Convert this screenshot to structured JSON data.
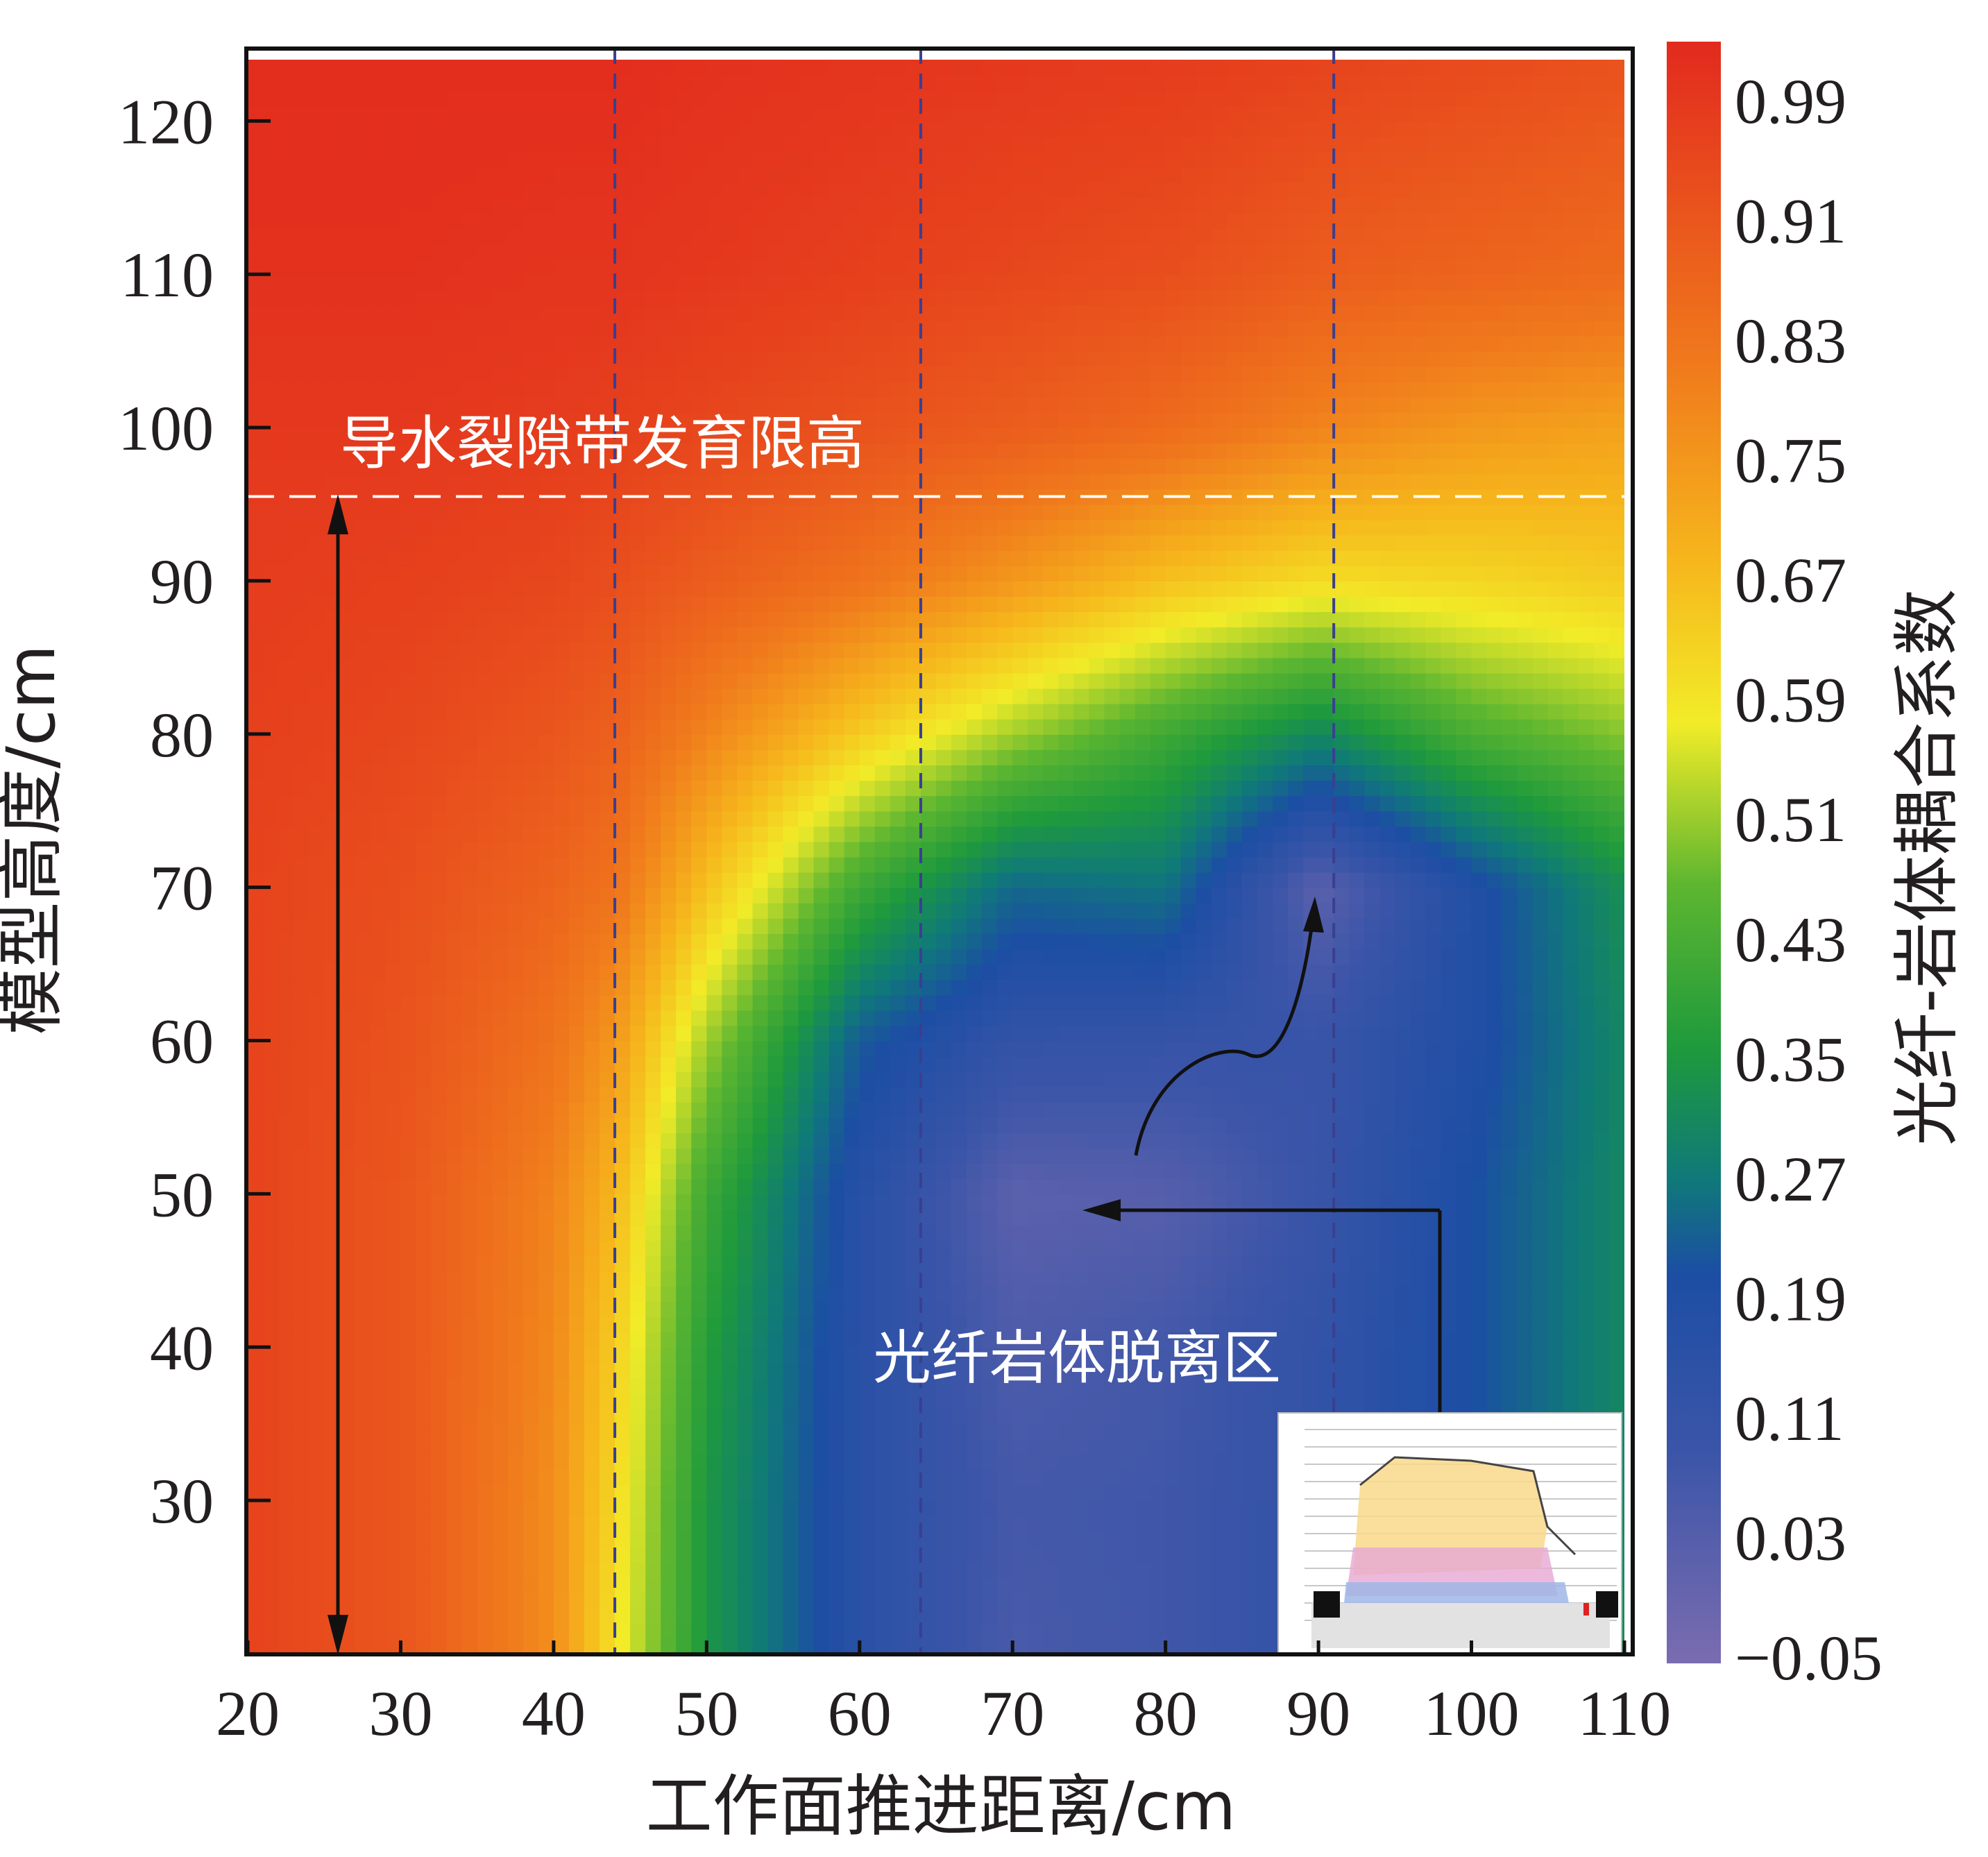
{
  "chart_data": {
    "type": "heatmap",
    "title": "",
    "xlabel": "工作面推进距离/cm",
    "ylabel": "模型高度/cm",
    "xlim": [
      20,
      110
    ],
    "ylim": [
      20,
      124
    ],
    "x_ticks": [
      "20",
      "30",
      "40",
      "50",
      "60",
      "70",
      "80",
      "90",
      "100",
      "110"
    ],
    "y_ticks": [
      "30",
      "40",
      "50",
      "60",
      "70",
      "80",
      "90",
      "100",
      "110",
      "120"
    ],
    "colorbar": {
      "label": "光纤-岩体耦合系数",
      "range": [
        -0.05,
        1.0
      ],
      "ticks": [
        "0.99",
        "0.91",
        "0.83",
        "0.75",
        "0.67",
        "0.59",
        "0.51",
        "0.43",
        "0.35",
        "0.27",
        "0.19",
        "0.11",
        "0.03",
        "−0.05"
      ]
    },
    "vertical_reference_lines_x": [
      44,
      64,
      91
    ],
    "horizontal_reference_line": {
      "y": 95.5,
      "label": "导水裂隙带发育限高"
    },
    "low_region_annotation": {
      "label": "光纤岩体脱离区",
      "point": [
        73,
        47
      ]
    },
    "grid": false,
    "field_samples_y_x": {
      "x": [
        20,
        30,
        40,
        44,
        50,
        60,
        70,
        80,
        90,
        100,
        110
      ],
      "rows": [
        {
          "y": 124,
          "values": [
            0.99,
            0.99,
            0.99,
            0.99,
            0.98,
            0.97,
            0.96,
            0.95,
            0.93,
            0.91,
            0.89
          ]
        },
        {
          "y": 110,
          "values": [
            0.98,
            0.98,
            0.97,
            0.97,
            0.96,
            0.94,
            0.92,
            0.9,
            0.86,
            0.84,
            0.82
          ]
        },
        {
          "y": 100,
          "values": [
            0.96,
            0.96,
            0.95,
            0.94,
            0.92,
            0.89,
            0.86,
            0.82,
            0.76,
            0.72,
            0.7
          ]
        },
        {
          "y": 90,
          "values": [
            0.95,
            0.94,
            0.92,
            0.9,
            0.86,
            0.8,
            0.72,
            0.64,
            0.59,
            0.6,
            0.62
          ]
        },
        {
          "y": 80,
          "values": [
            0.94,
            0.92,
            0.88,
            0.85,
            0.76,
            0.62,
            0.5,
            0.4,
            0.3,
            0.42,
            0.48
          ]
        },
        {
          "y": 70,
          "values": [
            0.93,
            0.9,
            0.84,
            0.8,
            0.64,
            0.4,
            0.24,
            0.26,
            0.02,
            0.18,
            0.32
          ]
        },
        {
          "y": 60,
          "values": [
            0.93,
            0.89,
            0.8,
            0.72,
            0.5,
            0.22,
            0.12,
            0.11,
            0.1,
            0.18,
            0.3
          ]
        },
        {
          "y": 50,
          "values": [
            0.93,
            0.88,
            0.76,
            0.66,
            0.4,
            0.16,
            0.02,
            0.03,
            0.1,
            0.2,
            0.3
          ]
        },
        {
          "y": 40,
          "values": [
            0.93,
            0.88,
            0.75,
            0.62,
            0.36,
            0.15,
            0.05,
            0.07,
            0.12,
            0.2,
            0.3
          ]
        },
        {
          "y": 30,
          "values": [
            0.93,
            0.88,
            0.74,
            0.6,
            0.34,
            0.15,
            0.07,
            0.08,
            0.12,
            0.2,
            0.3
          ]
        },
        {
          "y": 20,
          "values": [
            0.93,
            0.88,
            0.74,
            0.58,
            0.34,
            0.15,
            0.06,
            0.08,
            0.12,
            0.22,
            0.32
          ]
        }
      ]
    }
  }
}
